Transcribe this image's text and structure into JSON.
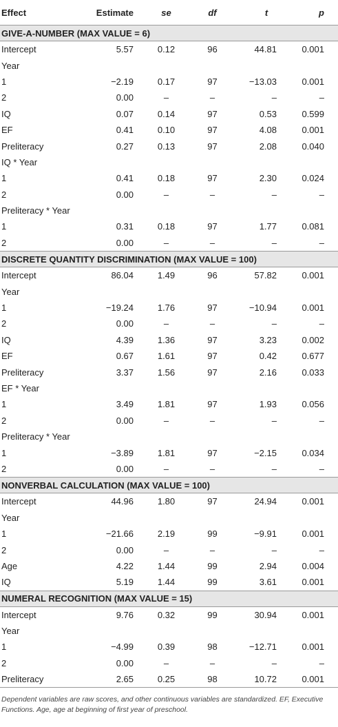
{
  "table": {
    "header": [
      "Effect",
      "Estimate",
      "se",
      "df",
      "t",
      "p"
    ],
    "sections": [
      {
        "title": "GIVE-A-NUMBER (MAX VALUE = 6)",
        "rows": [
          [
            "Intercept",
            "5.57",
            "0.12",
            "96",
            "44.81",
            "0.001"
          ],
          [
            "Year"
          ],
          [
            "1",
            "−2.19",
            "0.17",
            "97",
            "−13.03",
            "0.001"
          ],
          [
            "2",
            "0.00",
            "–",
            "–",
            "–",
            "–"
          ],
          [
            "IQ",
            "0.07",
            "0.14",
            "97",
            "0.53",
            "0.599"
          ],
          [
            "EF",
            "0.41",
            "0.10",
            "97",
            "4.08",
            "0.001"
          ],
          [
            "Preliteracy",
            "0.27",
            "0.13",
            "97",
            "2.08",
            "0.040"
          ],
          [
            "IQ * Year"
          ],
          [
            "1",
            "0.41",
            "0.18",
            "97",
            "2.30",
            "0.024"
          ],
          [
            "2",
            "0.00",
            "–",
            "–",
            "–",
            "–"
          ],
          [
            "Preliteracy * Year"
          ],
          [
            "1",
            "0.31",
            "0.18",
            "97",
            "1.77",
            "0.081"
          ],
          [
            "2",
            "0.00",
            "–",
            "–",
            "–",
            "–"
          ]
        ]
      },
      {
        "title": "DISCRETE QUANTITY DISCRIMINATION (MAX VALUE = 100)",
        "rows": [
          [
            "Intercept",
            "86.04",
            "1.49",
            "96",
            "57.82",
            "0.001"
          ],
          [
            "Year"
          ],
          [
            "1",
            "−19.24",
            "1.76",
            "97",
            "−10.94",
            "0.001"
          ],
          [
            "2",
            "0.00",
            "–",
            "–",
            "–",
            "–"
          ],
          [
            "IQ",
            "4.39",
            "1.36",
            "97",
            "3.23",
            "0.002"
          ],
          [
            "EF",
            "0.67",
            "1.61",
            "97",
            "0.42",
            "0.677"
          ],
          [
            "Preliteracy",
            "3.37",
            "1.56",
            "97",
            "2.16",
            "0.033"
          ],
          [
            "EF * Year"
          ],
          [
            "1",
            "3.49",
            "1.81",
            "97",
            "1.93",
            "0.056"
          ],
          [
            "2",
            "0.00",
            "–",
            "–",
            "–",
            "–"
          ],
          [
            "Preliteracy * Year"
          ],
          [
            "1",
            "−3.89",
            "1.81",
            "97",
            "−2.15",
            "0.034"
          ],
          [
            "2",
            "0.00",
            "–",
            "–",
            "–",
            "–"
          ]
        ]
      },
      {
        "title": "NONVERBAL CALCULATION (MAX VALUE = 100)",
        "rows": [
          [
            "Intercept",
            "44.96",
            "1.80",
            "97",
            "24.94",
            "0.001"
          ],
          [
            "Year"
          ],
          [
            "1",
            "−21.66",
            "2.19",
            "99",
            "−9.91",
            "0.001"
          ],
          [
            "2",
            "0.00",
            "–",
            "–",
            "–",
            "–"
          ],
          [
            "Age",
            "4.22",
            "1.44",
            "99",
            "2.94",
            "0.004"
          ],
          [
            "IQ",
            "5.19",
            "1.44",
            "99",
            "3.61",
            "0.001"
          ]
        ]
      },
      {
        "title": "NUMERAL RECOGNITION (MAX VALUE = 15)",
        "rows": [
          [
            "Intercept",
            "9.76",
            "0.32",
            "99",
            "30.94",
            "0.001"
          ],
          [
            "Year"
          ],
          [
            "1",
            "−4.99",
            "0.39",
            "98",
            "−12.71",
            "0.001"
          ],
          [
            "2",
            "0.00",
            "–",
            "–",
            "–",
            "–"
          ],
          [
            "Preliteracy",
            "2.65",
            "0.25",
            "98",
            "10.72",
            "0.001"
          ]
        ]
      }
    ],
    "footnote": "Dependent variables are raw scores, and other continuous variables are standardized. EF, Executive Functions. Age, age at beginning of first year of preschool."
  }
}
